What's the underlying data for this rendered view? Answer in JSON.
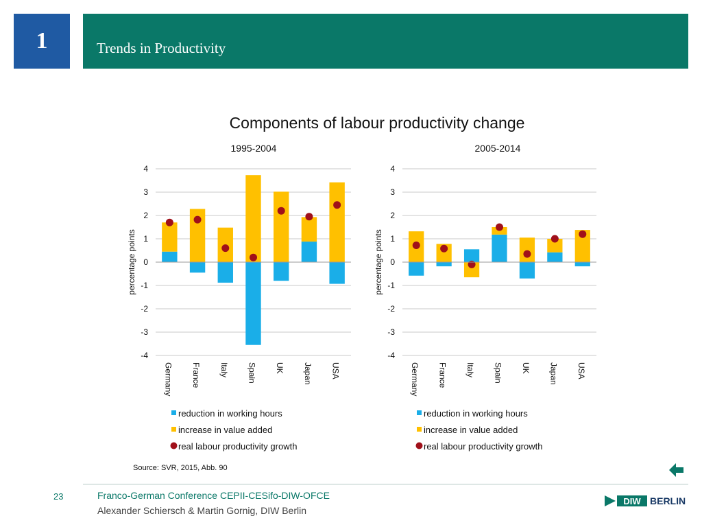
{
  "slide": {
    "section_number": "1",
    "section_title": "Trends in Productivity",
    "page_number": "23",
    "footer_conference": "Franco-German Conference CEPII-CESifo-DIW-OFCE",
    "footer_authors": "Alexander Schiersch & Martin Gornig, DIW Berlin",
    "logo_text": "BERLIN",
    "logo_mark_text": "DIW",
    "accent_color": "#0a7868",
    "number_box_color": "#1f5aa3",
    "back_icon": "back-arrow-icon"
  },
  "chart_title": "Components of labour productivity change",
  "source": "Source:  SVR, 2015, Abb. 90",
  "chart_data": [
    {
      "type": "bar",
      "stacked": true,
      "title": "1995-2004",
      "ylabel": "percentage points",
      "ylim": [
        -4,
        4
      ],
      "yticks": [
        -4,
        -3,
        -2,
        -1,
        0,
        1,
        2,
        3,
        4
      ],
      "grid": true,
      "legend_position": "bottom",
      "categories": [
        "Germany",
        "France",
        "Italy",
        "Spain",
        "UK",
        "Japan",
        "USA"
      ],
      "series": [
        {
          "name": "reduction in working hours",
          "type": "bar",
          "color": "#1aaee8",
          "values": [
            0.45,
            -0.45,
            -0.88,
            -3.55,
            -0.8,
            0.88,
            -0.93
          ]
        },
        {
          "name": "increase in value added",
          "type": "bar",
          "color": "#ffc000",
          "values": [
            1.25,
            2.28,
            1.48,
            3.73,
            3.02,
            1.05,
            3.42
          ]
        },
        {
          "name": "real labour productivity growth",
          "type": "scatter",
          "color": "#a0101a",
          "values": [
            1.7,
            1.82,
            0.6,
            0.2,
            2.2,
            1.95,
            2.45
          ]
        }
      ]
    },
    {
      "type": "bar",
      "stacked": true,
      "title": "2005-2014",
      "ylabel": "percentage points",
      "ylim": [
        -4,
        4
      ],
      "yticks": [
        -4,
        -3,
        -2,
        -1,
        0,
        1,
        2,
        3,
        4
      ],
      "grid": true,
      "legend_position": "bottom",
      "categories": [
        "Germany",
        "France",
        "Italy",
        "Spain",
        "UK",
        "Japan",
        "USA"
      ],
      "series": [
        {
          "name": "reduction in working hours",
          "type": "bar",
          "color": "#1aaee8",
          "values": [
            -0.58,
            -0.18,
            0.55,
            1.18,
            -0.7,
            0.42,
            -0.18
          ]
        },
        {
          "name": "increase in value added",
          "type": "bar",
          "color": "#ffc000",
          "values": [
            1.32,
            0.78,
            -0.65,
            0.32,
            1.05,
            0.58,
            1.38
          ]
        },
        {
          "name": "real labour productivity growth",
          "type": "scatter",
          "color": "#a0101a",
          "values": [
            0.72,
            0.58,
            -0.1,
            1.5,
            0.35,
            1.0,
            1.2
          ]
        }
      ]
    }
  ]
}
